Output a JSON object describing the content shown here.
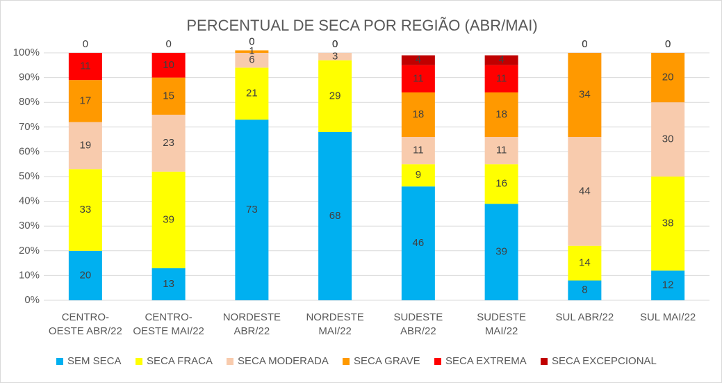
{
  "chart_data": {
    "type": "stacked_bar_100",
    "title": "PERCENTUAL DE SECA POR REGIÃO (ABR/MAI)",
    "categories": [
      "CENTRO-OESTE ABR/22",
      "CENTRO-OESTE MAI/22",
      "NORDESTE ABR/22",
      "NORDESTE MAI/22",
      "SUDESTE ABR/22",
      "SUDESTE MAI/22",
      "SUL ABR/22",
      "SUL MAI/22"
    ],
    "series": [
      {
        "name": "SEM SECA",
        "color": "#00b0f0",
        "values": [
          20,
          13,
          73,
          68,
          46,
          39,
          8,
          12
        ]
      },
      {
        "name": "SECA FRACA",
        "color": "#ffff00",
        "values": [
          33,
          39,
          21,
          29,
          9,
          16,
          14,
          38
        ]
      },
      {
        "name": "SECA MODERADA",
        "color": "#f8cbad",
        "values": [
          19,
          23,
          6,
          3,
          11,
          11,
          44,
          30
        ]
      },
      {
        "name": "SECA GRAVE",
        "color": "#ff9900",
        "values": [
          17,
          15,
          1,
          0,
          18,
          18,
          34,
          20
        ]
      },
      {
        "name": "SECA EXTREMA",
        "color": "#ff0000",
        "values": [
          11,
          10,
          0,
          0,
          11,
          11,
          0,
          0
        ]
      },
      {
        "name": "SECA EXCEPCIONAL",
        "color": "#c00000",
        "values": [
          0,
          0,
          0,
          0,
          4,
          4,
          0,
          0
        ]
      }
    ],
    "ylim": [
      0,
      100
    ],
    "yticks": [
      {
        "value": 0,
        "label": "0%"
      },
      {
        "value": 10,
        "label": "10%"
      },
      {
        "value": 20,
        "label": "20%"
      },
      {
        "value": 30,
        "label": "30%"
      },
      {
        "value": 40,
        "label": "40%"
      },
      {
        "value": 50,
        "label": "50%"
      },
      {
        "value": 60,
        "label": "60%"
      },
      {
        "value": 70,
        "label": "70%"
      },
      {
        "value": 80,
        "label": "80%"
      },
      {
        "value": 90,
        "label": "90%"
      },
      {
        "value": 100,
        "label": "100%"
      }
    ],
    "grid": true,
    "legend": "bottom"
  }
}
